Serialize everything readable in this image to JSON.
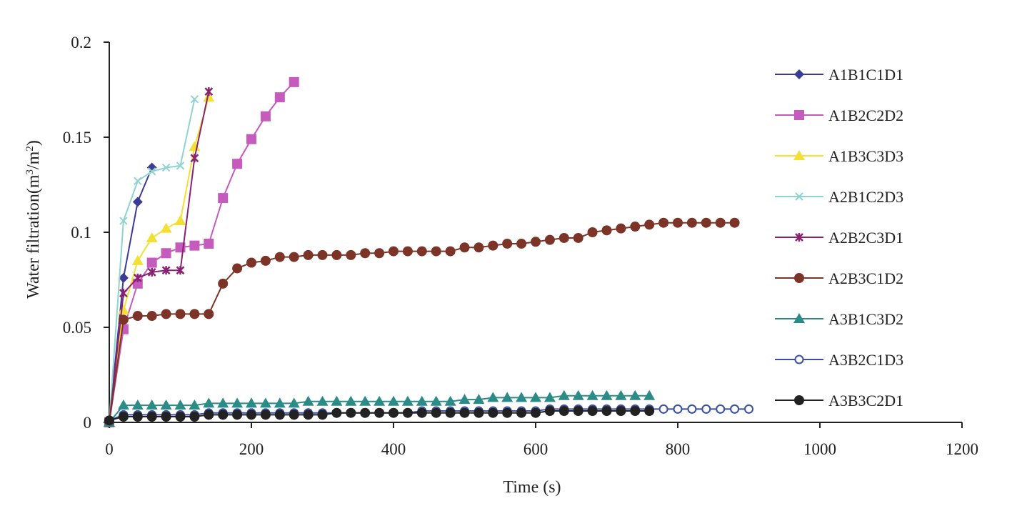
{
  "chart_data": {
    "type": "line",
    "title": "",
    "xlabel": "Time (s)",
    "ylabel_main": "Water filtration(m",
    "ylabel_sup1": "3",
    "ylabel_mid": "/m",
    "ylabel_sup2": "2",
    "ylabel_end": ")",
    "xlim": [
      0,
      1200
    ],
    "ylim": [
      0,
      0.2
    ],
    "xticks": [
      0,
      200,
      400,
      600,
      800,
      1000,
      1200
    ],
    "xtick_labels": [
      "0",
      "200",
      "400",
      "600",
      "800",
      "1000",
      "1200"
    ],
    "yticks": [
      0,
      0.05,
      0.1,
      0.15,
      0.2
    ],
    "ytick_labels": [
      "0",
      "0.05",
      "0.1",
      "0.15",
      "0.2"
    ],
    "grid": false,
    "legend_position": "right",
    "series": [
      {
        "name": "A1B1C1D1",
        "color": "#3b3a95",
        "marker": "diamond",
        "x": [
          0,
          20,
          40,
          60
        ],
        "y": [
          0,
          0.076,
          0.116,
          0.134
        ]
      },
      {
        "name": "A1B2C2D2",
        "color": "#c45bbd",
        "marker": "square",
        "x": [
          0,
          20,
          40,
          60,
          80,
          100,
          120,
          140,
          160,
          180,
          200,
          220,
          240,
          260
        ],
        "y": [
          0,
          0.049,
          0.073,
          0.084,
          0.089,
          0.092,
          0.093,
          0.094,
          0.118,
          0.136,
          0.149,
          0.161,
          0.171,
          0.179
        ]
      },
      {
        "name": "A1B3C3D3",
        "color": "#f2e035",
        "marker": "triangle",
        "x": [
          0,
          20,
          40,
          60,
          80,
          100,
          120,
          140
        ],
        "y": [
          0,
          0.059,
          0.085,
          0.097,
          0.102,
          0.106,
          0.145,
          0.171
        ]
      },
      {
        "name": "A2B1C2D3",
        "color": "#8fd3d1",
        "marker": "x",
        "x": [
          0,
          20,
          40,
          60,
          80,
          100,
          120
        ],
        "y": [
          0,
          0.106,
          0.127,
          0.132,
          0.134,
          0.135,
          0.17
        ]
      },
      {
        "name": "A2B2C3D1",
        "color": "#8a2272",
        "marker": "star",
        "x": [
          0,
          20,
          40,
          60,
          80,
          100,
          120,
          140
        ],
        "y": [
          0,
          0.068,
          0.076,
          0.079,
          0.08,
          0.08,
          0.139,
          0.174
        ]
      },
      {
        "name": "A2B3C1D2",
        "color": "#7b3427",
        "marker": "circle",
        "x": [
          0,
          20,
          40,
          60,
          80,
          100,
          120,
          140,
          160,
          180,
          200,
          220,
          240,
          260,
          280,
          300,
          320,
          340,
          360,
          380,
          400,
          420,
          440,
          460,
          480,
          500,
          520,
          540,
          560,
          580,
          600,
          620,
          640,
          660,
          680,
          700,
          720,
          740,
          760,
          780,
          800,
          820,
          840,
          860,
          880
        ],
        "y": [
          0,
          0.054,
          0.056,
          0.056,
          0.057,
          0.057,
          0.057,
          0.057,
          0.073,
          0.081,
          0.084,
          0.085,
          0.087,
          0.087,
          0.088,
          0.088,
          0.088,
          0.088,
          0.089,
          0.089,
          0.09,
          0.09,
          0.09,
          0.09,
          0.09,
          0.092,
          0.092,
          0.093,
          0.094,
          0.094,
          0.095,
          0.096,
          0.097,
          0.097,
          0.1,
          0.101,
          0.102,
          0.103,
          0.104,
          0.105,
          0.105,
          0.105,
          0.105,
          0.105,
          0.105
        ]
      },
      {
        "name": "A3B1C3D2",
        "color": "#2a8b87",
        "marker": "triangle",
        "x": [
          0,
          20,
          40,
          60,
          80,
          100,
          120,
          140,
          160,
          180,
          200,
          220,
          240,
          260,
          280,
          300,
          320,
          340,
          360,
          380,
          400,
          420,
          440,
          460,
          480,
          500,
          520,
          540,
          560,
          580,
          600,
          620,
          640,
          660,
          680,
          700,
          720,
          740,
          760
        ],
        "y": [
          0,
          0.009,
          0.009,
          0.009,
          0.009,
          0.009,
          0.009,
          0.01,
          0.01,
          0.01,
          0.01,
          0.01,
          0.01,
          0.01,
          0.011,
          0.011,
          0.011,
          0.011,
          0.011,
          0.011,
          0.011,
          0.011,
          0.011,
          0.011,
          0.011,
          0.012,
          0.012,
          0.013,
          0.013,
          0.013,
          0.013,
          0.013,
          0.014,
          0.014,
          0.014,
          0.014,
          0.014,
          0.014,
          0.014
        ]
      },
      {
        "name": "A3B2C1D3",
        "color": "#3b4fa3",
        "marker": "open-circle",
        "x": [
          0,
          20,
          40,
          60,
          80,
          100,
          120,
          140,
          160,
          180,
          200,
          220,
          240,
          260,
          280,
          300,
          320,
          340,
          360,
          380,
          400,
          420,
          440,
          460,
          480,
          500,
          520,
          540,
          560,
          580,
          600,
          620,
          640,
          660,
          680,
          700,
          720,
          740,
          760,
          780,
          800,
          820,
          840,
          860,
          880,
          900
        ],
        "y": [
          0.001,
          0.004,
          0.004,
          0.004,
          0.004,
          0.004,
          0.004,
          0.005,
          0.005,
          0.005,
          0.005,
          0.005,
          0.005,
          0.005,
          0.005,
          0.005,
          0.005,
          0.005,
          0.005,
          0.005,
          0.005,
          0.005,
          0.006,
          0.006,
          0.006,
          0.006,
          0.006,
          0.006,
          0.006,
          0.006,
          0.006,
          0.007,
          0.007,
          0.007,
          0.007,
          0.007,
          0.007,
          0.007,
          0.007,
          0.007,
          0.007,
          0.007,
          0.007,
          0.007,
          0.007,
          0.007
        ]
      },
      {
        "name": "A3B3C2D1",
        "color": "#222222",
        "marker": "circle",
        "x": [
          0,
          20,
          40,
          60,
          80,
          100,
          120,
          140,
          160,
          180,
          200,
          220,
          240,
          260,
          280,
          300,
          320,
          340,
          360,
          380,
          400,
          420,
          440,
          460,
          480,
          500,
          520,
          540,
          560,
          580,
          600,
          620,
          640,
          660,
          680,
          700,
          720,
          740,
          760
        ],
        "y": [
          0.001,
          0.003,
          0.003,
          0.003,
          0.003,
          0.003,
          0.003,
          0.004,
          0.004,
          0.004,
          0.004,
          0.004,
          0.004,
          0.004,
          0.004,
          0.004,
          0.005,
          0.005,
          0.005,
          0.005,
          0.005,
          0.005,
          0.005,
          0.005,
          0.005,
          0.005,
          0.005,
          0.005,
          0.005,
          0.005,
          0.005,
          0.006,
          0.006,
          0.006,
          0.006,
          0.006,
          0.006,
          0.006,
          0.006
        ]
      }
    ]
  }
}
